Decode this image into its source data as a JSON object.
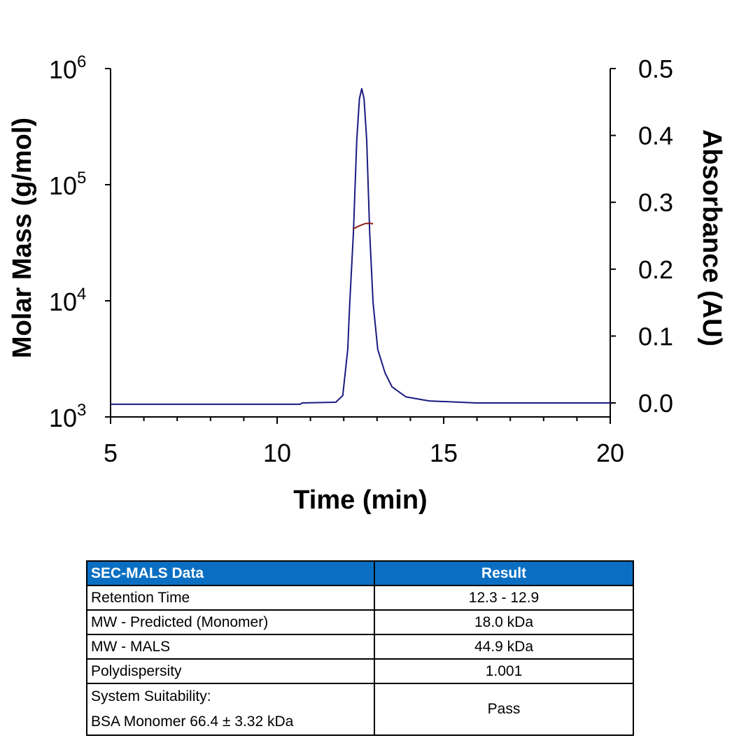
{
  "chart_data": {
    "type": "line",
    "title": "",
    "xlabel": "Time (min)",
    "ylabel_left": "Molar Mass (g/mol)",
    "ylabel_right": "Absorbance (AU)",
    "xlim": [
      5,
      20
    ],
    "ylim_left": [
      1000,
      1000000
    ],
    "yscale_left": "log",
    "ylim_right": [
      0,
      0.5
    ],
    "x_ticks": [
      "5",
      "10",
      "15",
      "20"
    ],
    "y_left_ticks": [
      {
        "base": "10",
        "exp": "3"
      },
      {
        "base": "10",
        "exp": "4"
      },
      {
        "base": "10",
        "exp": "5"
      },
      {
        "base": "10",
        "exp": "6"
      }
    ],
    "y_right_ticks": [
      "0.0",
      "0.1",
      "0.2",
      "0.3",
      "0.4",
      "0.5"
    ],
    "grid": false,
    "series": [
      {
        "axis": "right",
        "color": "#1a1a80",
        "x": [
          5,
          10.7,
          10.75,
          11.76,
          11.97,
          12.12,
          12.18,
          12.29,
          12.39,
          12.47,
          12.54,
          12.61,
          12.69,
          12.78,
          12.88,
          13.02,
          13.24,
          13.45,
          13.87,
          14.56,
          15.97,
          20
        ],
        "y": [
          -0.002,
          -0.002,
          0.0,
          0.001,
          0.011,
          0.08,
          0.15,
          0.254,
          0.393,
          0.455,
          0.47,
          0.455,
          0.393,
          0.254,
          0.15,
          0.08,
          0.045,
          0.024,
          0.009,
          0.003,
          0.0,
          0.0
        ]
      },
      {
        "axis": "left",
        "color": "#8b1a1a",
        "x": [
          12.27,
          12.45,
          12.65,
          12.8,
          12.88
        ],
        "y": [
          41500,
          44000,
          46300,
          46500,
          46000
        ]
      }
    ]
  },
  "table": {
    "headers": [
      "SEC-MALS Data",
      "Result"
    ],
    "header_color": "#0a6fc2",
    "rows": [
      {
        "label": "Retention Time",
        "value": "12.3 - 12.9"
      },
      {
        "label": "MW - Predicted (Monomer)",
        "value": "18.0 kDa"
      },
      {
        "label": "MW - MALS",
        "value": "44.9 kDa"
      },
      {
        "label": "Polydispersity",
        "value": "1.001"
      },
      {
        "label": "System Suitability:",
        "label2": "BSA Monomer 66.4 ± 3.32 kDa",
        "value": "Pass"
      }
    ]
  }
}
